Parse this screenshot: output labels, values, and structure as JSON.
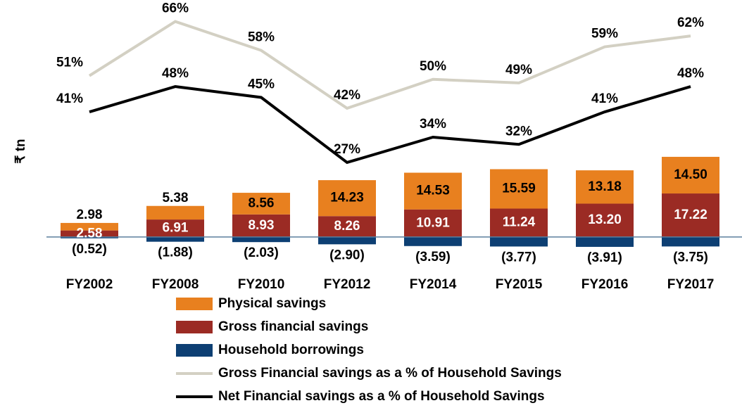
{
  "chart_data": {
    "type": "bar",
    "y_label": "₹ tn",
    "categories": [
      "FY2002",
      "FY2008",
      "FY2010",
      "FY2012",
      "FY2014",
      "FY2015",
      "FY2016",
      "FY2017"
    ],
    "ylim": [
      -12,
      91
    ],
    "y2lim": [
      -2,
      70
    ],
    "series": [
      {
        "name": "Physical savings",
        "type": "bar",
        "color": "#e8801f",
        "values": [
          2.98,
          5.38,
          8.56,
          14.23,
          14.53,
          15.59,
          13.18,
          14.5
        ],
        "value_labels": [
          "2.98",
          "5.38",
          "8.56",
          "14.23",
          "14.53",
          "15.59",
          "13.18",
          "14.50"
        ]
      },
      {
        "name": "Gross financial savings",
        "type": "bar",
        "color": "#9b2b24",
        "values": [
          2.58,
          6.91,
          8.93,
          8.26,
          10.91,
          11.24,
          13.2,
          17.22
        ],
        "value_labels": [
          "2.58",
          "6.91",
          "8.93",
          "8.26",
          "10.91",
          "11.24",
          "13.20",
          "17.22"
        ]
      },
      {
        "name": "Household borrowings",
        "type": "bar",
        "color": "#0d3f73",
        "values": [
          -0.52,
          -1.88,
          -2.03,
          -2.9,
          -3.59,
          -3.77,
          -3.91,
          -3.75
        ],
        "value_labels": [
          "(0.52)",
          "(1.88)",
          "(2.03)",
          "(2.90)",
          "(3.59)",
          "(3.77)",
          "(3.91)",
          "(3.75)"
        ]
      },
      {
        "name": "Gross Financial savings as a % of Household Savings",
        "type": "line",
        "axis": "y2",
        "color": "#d3d0c3",
        "values": [
          51,
          66,
          58,
          42,
          50,
          49,
          59,
          62
        ],
        "value_labels": [
          "51%",
          "66%",
          "58%",
          "42%",
          "50%",
          "49%",
          "59%",
          "62%"
        ]
      },
      {
        "name": "Net Financial savings as a % of Household Savings",
        "type": "line",
        "axis": "y2",
        "color": "#000000",
        "values": [
          41,
          48,
          45,
          27,
          34,
          32,
          41,
          48
        ],
        "value_labels": [
          "41%",
          "48%",
          "45%",
          "27%",
          "34%",
          "32%",
          "41%",
          "48%"
        ]
      }
    ]
  }
}
